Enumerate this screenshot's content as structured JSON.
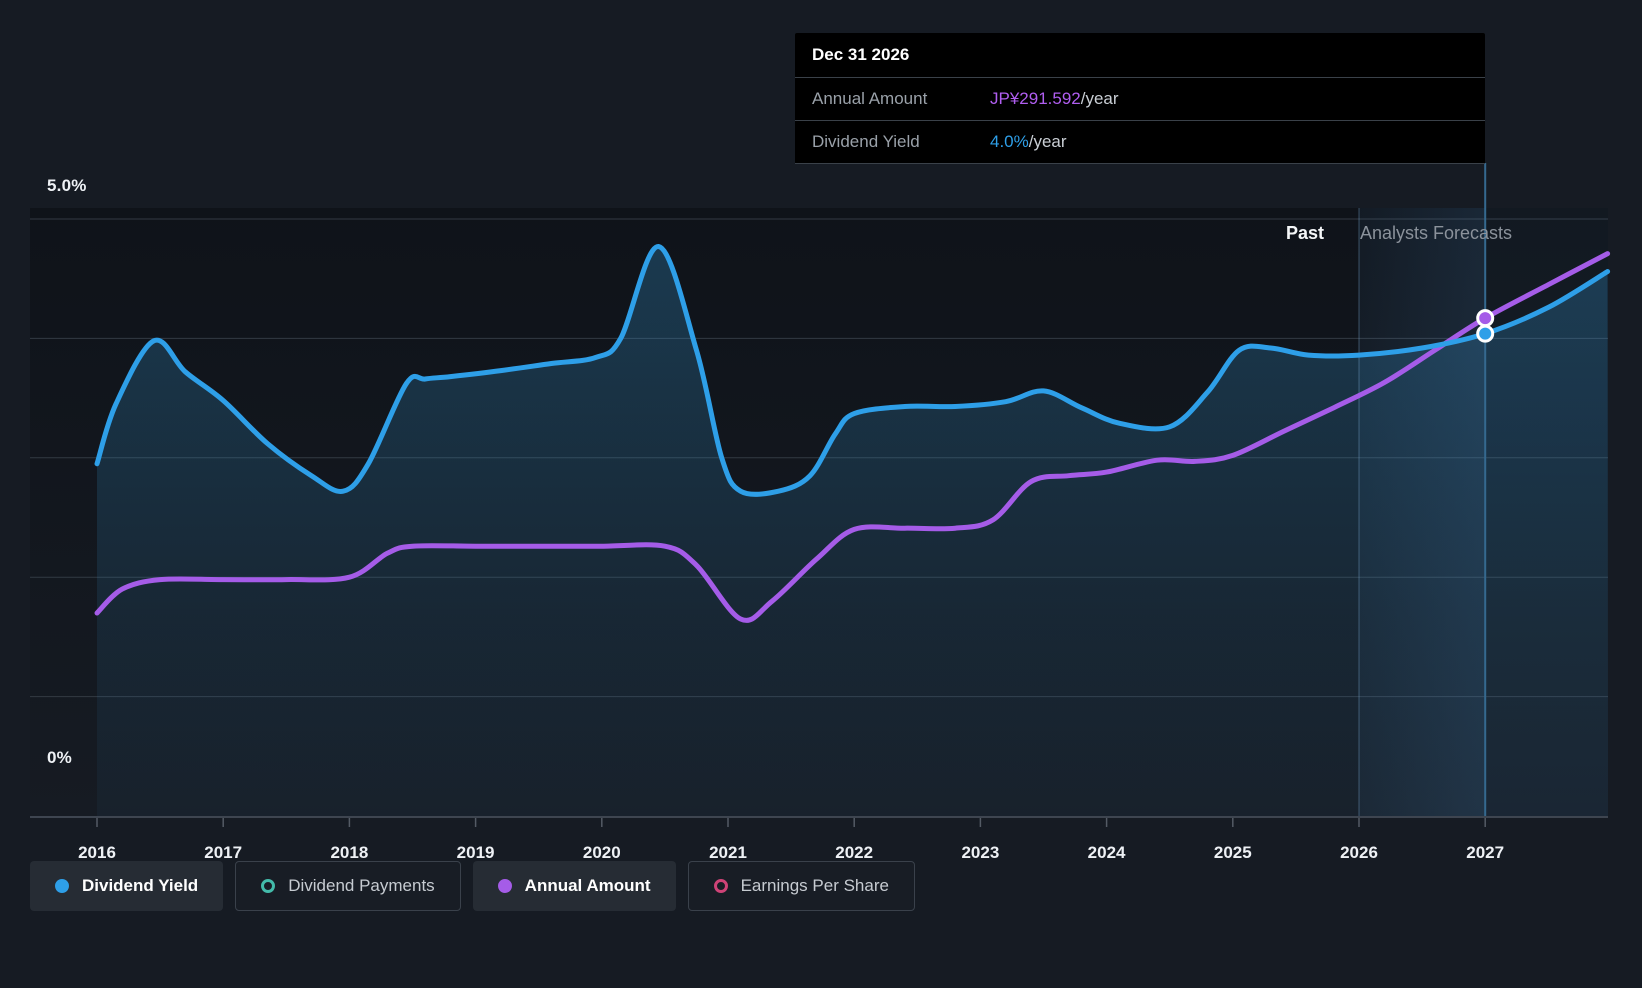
{
  "page": {
    "background": "#161b23"
  },
  "tooltip": {
    "title": "Dec 31 2026",
    "rows": [
      {
        "label": "Annual Amount",
        "value": "JP¥291.592",
        "suffix": "/year",
        "value_color": "#b05ef0"
      },
      {
        "label": "Dividend Yield",
        "value": "4.0%",
        "suffix": "/year",
        "value_color": "#2e9fe8"
      }
    ]
  },
  "axis": {
    "y_top_label": "5.0%",
    "y_bottom_label": "0%",
    "x_labels": [
      "2016",
      "2017",
      "2018",
      "2019",
      "2020",
      "2021",
      "2022",
      "2023",
      "2024",
      "2025",
      "2026",
      "2027"
    ]
  },
  "annotations": {
    "past": "Past",
    "forecast": "Analysts Forecasts"
  },
  "legend": {
    "items": [
      {
        "label": "Dividend Yield",
        "color": "#2e9fe8",
        "filled": true,
        "selected": true
      },
      {
        "label": "Dividend Payments",
        "color": "#43bbaa",
        "filled": false,
        "selected": false
      },
      {
        "label": "Annual Amount",
        "color": "#a55ce8",
        "filled": true,
        "selected": true
      },
      {
        "label": "Earnings Per Share",
        "color": "#ce4377",
        "filled": false,
        "selected": false
      }
    ]
  },
  "chart_data": {
    "type": "area",
    "x_axis": {
      "ticks": [
        2016,
        2017,
        2018,
        2019,
        2020,
        2021,
        2022,
        2023,
        2024,
        2025,
        2026,
        2027
      ],
      "range": [
        2016,
        2027.97
      ]
    },
    "y_axis": {
      "unit": "%",
      "range": [
        0,
        5.1
      ],
      "gridlines_pct": [
        1,
        2,
        3,
        4,
        5
      ],
      "labeled": [
        "5.0%",
        "0%"
      ],
      "grid_on": true
    },
    "forecast_start_x": 2026.0,
    "forecast_band_label": "Analysts Forecasts",
    "hover_x": 2027.0,
    "hover_date": "Dec 31 2026",
    "series": [
      {
        "name": "Dividend Yield",
        "color": "#2e9fe8",
        "style": "line+area",
        "hover_value": "4.0%/year",
        "points": [
          [
            2016.0,
            2.95
          ],
          [
            2016.15,
            3.45
          ],
          [
            2016.45,
            3.98
          ],
          [
            2016.7,
            3.72
          ],
          [
            2017.0,
            3.48
          ],
          [
            2017.35,
            3.12
          ],
          [
            2017.7,
            2.85
          ],
          [
            2017.95,
            2.72
          ],
          [
            2018.15,
            2.95
          ],
          [
            2018.45,
            3.62
          ],
          [
            2018.6,
            3.66
          ],
          [
            2018.8,
            3.68
          ],
          [
            2019.2,
            3.73
          ],
          [
            2019.6,
            3.79
          ],
          [
            2019.95,
            3.84
          ],
          [
            2020.15,
            4.0
          ],
          [
            2020.45,
            4.77
          ],
          [
            2020.75,
            3.9
          ],
          [
            2020.95,
            3.0
          ],
          [
            2021.1,
            2.72
          ],
          [
            2021.4,
            2.72
          ],
          [
            2021.65,
            2.85
          ],
          [
            2021.85,
            3.2
          ],
          [
            2022.0,
            3.37
          ],
          [
            2022.4,
            3.43
          ],
          [
            2022.8,
            3.43
          ],
          [
            2023.2,
            3.47
          ],
          [
            2023.5,
            3.56
          ],
          [
            2023.8,
            3.42
          ],
          [
            2024.1,
            3.29
          ],
          [
            2024.5,
            3.26
          ],
          [
            2024.8,
            3.55
          ],
          [
            2025.05,
            3.9
          ],
          [
            2025.3,
            3.92
          ],
          [
            2025.6,
            3.86
          ],
          [
            2026.0,
            3.86
          ],
          [
            2026.5,
            3.92
          ],
          [
            2027.0,
            4.04
          ],
          [
            2027.5,
            4.26
          ],
          [
            2027.97,
            4.56
          ]
        ]
      },
      {
        "name": "Annual Amount",
        "color": "#a55ce8",
        "style": "line",
        "hover_value": "JP¥291.592/year",
        "points": [
          [
            2016.0,
            1.7
          ],
          [
            2016.2,
            1.9
          ],
          [
            2016.5,
            1.98
          ],
          [
            2017.0,
            1.98
          ],
          [
            2017.5,
            1.98
          ],
          [
            2018.0,
            2.0
          ],
          [
            2018.3,
            2.2
          ],
          [
            2018.5,
            2.26
          ],
          [
            2019.0,
            2.26
          ],
          [
            2019.5,
            2.26
          ],
          [
            2020.0,
            2.26
          ],
          [
            2020.5,
            2.26
          ],
          [
            2020.75,
            2.1
          ],
          [
            2021.1,
            1.65
          ],
          [
            2021.35,
            1.8
          ],
          [
            2021.7,
            2.15
          ],
          [
            2022.0,
            2.4
          ],
          [
            2022.4,
            2.41
          ],
          [
            2022.8,
            2.41
          ],
          [
            2023.1,
            2.48
          ],
          [
            2023.4,
            2.8
          ],
          [
            2023.7,
            2.85
          ],
          [
            2024.0,
            2.88
          ],
          [
            2024.4,
            2.98
          ],
          [
            2024.7,
            2.97
          ],
          [
            2025.0,
            3.02
          ],
          [
            2025.4,
            3.22
          ],
          [
            2025.8,
            3.42
          ],
          [
            2026.2,
            3.63
          ],
          [
            2026.6,
            3.9
          ],
          [
            2027.0,
            4.17
          ],
          [
            2027.5,
            4.45
          ],
          [
            2027.97,
            4.71
          ]
        ]
      }
    ],
    "markers": [
      {
        "series": "Annual Amount",
        "x": 2027.0,
        "y": 4.17,
        "color": "#a55ce8"
      },
      {
        "series": "Dividend Yield",
        "x": 2027.0,
        "y": 4.04,
        "color": "#2e9fe8"
      }
    ],
    "colors": {
      "gridline": "#333a43",
      "axis_line": "#3e4550",
      "area_fill": "#3494cd",
      "forecast_band": "#569ede",
      "hover_line": "#35698f"
    }
  }
}
